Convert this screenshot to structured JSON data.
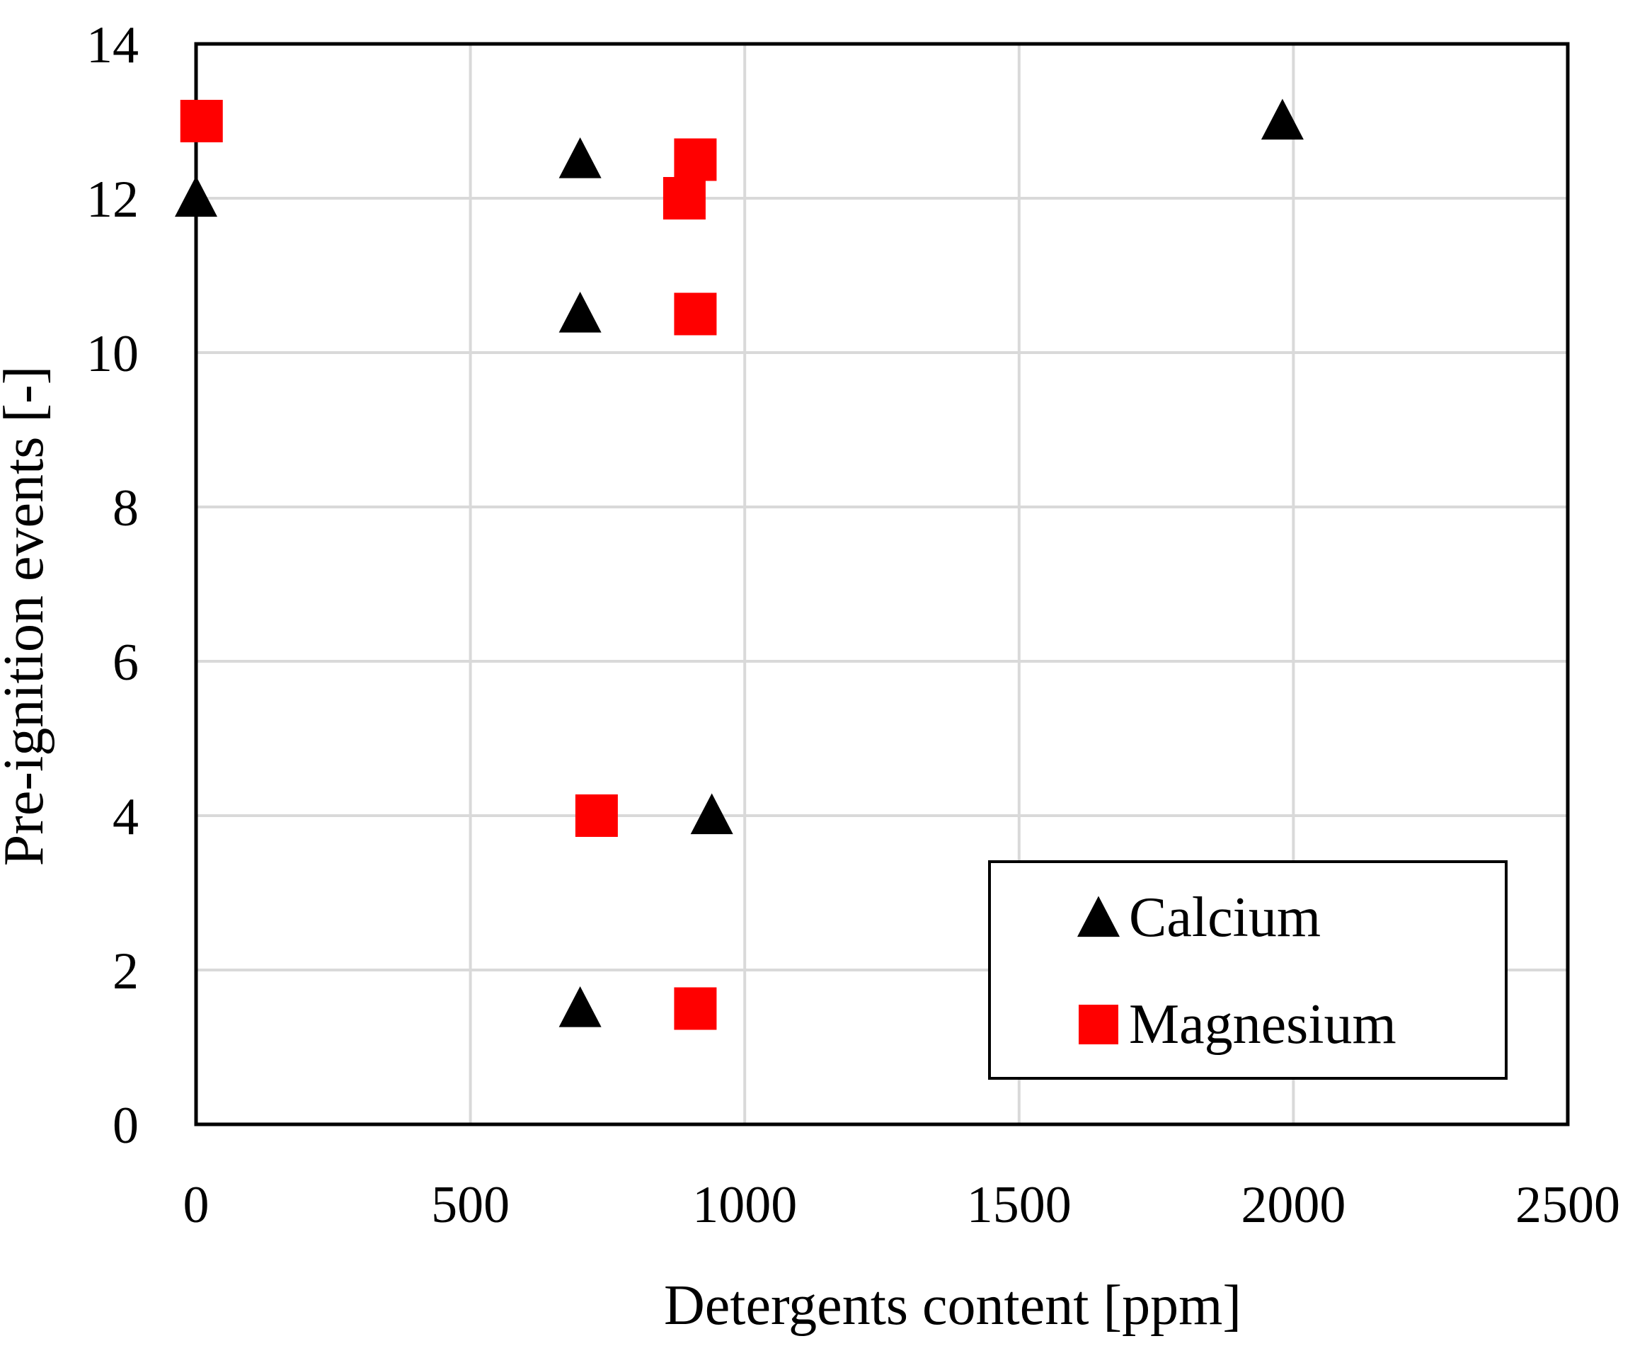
{
  "chart_data": {
    "type": "scatter",
    "title": "",
    "xlabel": "Detergents content [ppm]",
    "ylabel": "Pre-ignition events [-]",
    "xlim": [
      0,
      2500
    ],
    "ylim": [
      0,
      14
    ],
    "x_ticks": [
      0,
      500,
      1000,
      1500,
      2000,
      2500
    ],
    "y_ticks": [
      0,
      2,
      4,
      6,
      8,
      10,
      12,
      14
    ],
    "x_tick_labels": [
      "0",
      "500",
      "1000",
      "1500",
      "2000",
      "2500"
    ],
    "y_tick_labels": [
      "0",
      "2",
      "4",
      "6",
      "8",
      "10",
      "12",
      "14"
    ],
    "grid": true,
    "legend_position": "bottom-right",
    "series": [
      {
        "name": "Calcium",
        "marker": "triangle",
        "color": "#000000",
        "points": [
          {
            "x": 0,
            "y": 12
          },
          {
            "x": 700,
            "y": 12.5
          },
          {
            "x": 700,
            "y": 10.5
          },
          {
            "x": 940,
            "y": 4
          },
          {
            "x": 700,
            "y": 1.5
          },
          {
            "x": 1980,
            "y": 13
          }
        ]
      },
      {
        "name": "Magnesium",
        "marker": "square",
        "color": "#ff0000",
        "points": [
          {
            "x": 10,
            "y": 13
          },
          {
            "x": 910,
            "y": 12.5
          },
          {
            "x": 890,
            "y": 12
          },
          {
            "x": 910,
            "y": 10.5
          },
          {
            "x": 730,
            "y": 4
          },
          {
            "x": 910,
            "y": 1.5
          }
        ]
      }
    ]
  }
}
